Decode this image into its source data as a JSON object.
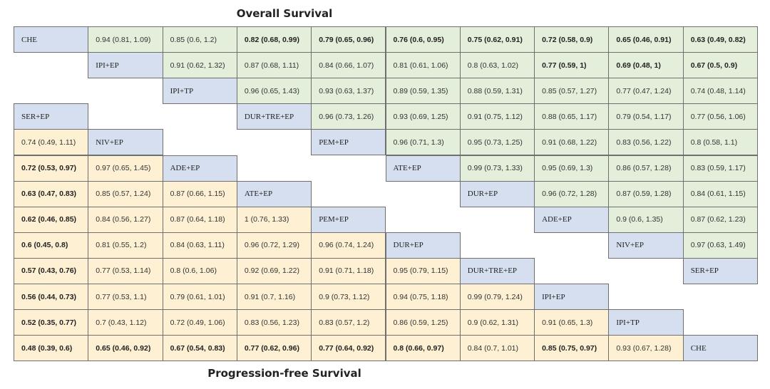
{
  "titles": {
    "top": "Overall Survival",
    "bottom": "Progression-free Survival"
  },
  "colors": {
    "os_cell": "#e3eedb",
    "pfs_cell": "#fdf0d3",
    "diag_cell": "#d6dff0",
    "border": "#6f6f6f"
  },
  "chart_data": {
    "type": "table",
    "title": "",
    "top_label": "Overall Survival",
    "bottom_label": "Progression-free Survival",
    "os_diagonal": [
      "CHE",
      "IPI+EP",
      "IPI+TP",
      "DUR+TRE+EP",
      "PEM+EP",
      "ATE+EP",
      "DUR+EP",
      "ADE+EP",
      "NIV+EP",
      "SER+EP"
    ],
    "pfs_diagonal": [
      "SER+EP",
      "NIV+EP",
      "ADE+EP",
      "ATE+EP",
      "PEM+EP",
      "DUR+EP",
      "DUR+TRE+EP",
      "IPI+EP",
      "IPI+TP",
      "CHE"
    ],
    "os_rows": [
      [
        {
          "v": "0.94 (0.81, 1.09)",
          "b": false
        },
        {
          "v": "0.85 (0.6, 1.2)",
          "b": false
        },
        {
          "v": "0.82 (0.68, 0.99)",
          "b": true
        },
        {
          "v": "0.79 (0.65, 0.96)",
          "b": true
        },
        {
          "v": "0.76 (0.6, 0.95)",
          "b": true
        },
        {
          "v": "0.75 (0.62, 0.91)",
          "b": true
        },
        {
          "v": "0.72 (0.58, 0.9)",
          "b": true
        },
        {
          "v": "0.65 (0.46, 0.91)",
          "b": true
        },
        {
          "v": "0.63 (0.49, 0.82)",
          "b": true
        }
      ],
      [
        {
          "v": "0.91 (0.62, 1.32)",
          "b": false
        },
        {
          "v": "0.87 (0.68, 1.11)",
          "b": false
        },
        {
          "v": "0.84 (0.66, 1.07)",
          "b": false
        },
        {
          "v": "0.81 (0.61, 1.06)",
          "b": false
        },
        {
          "v": "0.8 (0.63, 1.02)",
          "b": false
        },
        {
          "v": "0.77 (0.59, 1)",
          "b": true
        },
        {
          "v": "0.69 (0.48, 1)",
          "b": true
        },
        {
          "v": "0.67 (0.5, 0.9)",
          "b": true
        }
      ],
      [
        {
          "v": "0.96 (0.65, 1.43)",
          "b": false
        },
        {
          "v": "0.93 (0.63, 1.37)",
          "b": false
        },
        {
          "v": "0.89 (0.59, 1.35)",
          "b": false
        },
        {
          "v": "0.88 (0.59, 1.31)",
          "b": false
        },
        {
          "v": "0.85 (0.57, 1.27)",
          "b": false
        },
        {
          "v": "0.77 (0.47, 1.24)",
          "b": false
        },
        {
          "v": "0.74 (0.48, 1.14)",
          "b": false
        }
      ],
      [
        {
          "v": "0.96 (0.73, 1.26)",
          "b": false
        },
        {
          "v": "0.93 (0.69, 1.25)",
          "b": false
        },
        {
          "v": "0.91 (0.75, 1.12)",
          "b": false
        },
        {
          "v": "0.88 (0.65, 1.17)",
          "b": false
        },
        {
          "v": "0.79 (0.54, 1.17)",
          "b": false
        },
        {
          "v": "0.77 (0.56, 1.06)",
          "b": false
        }
      ],
      [
        {
          "v": "0.96 (0.71, 1.3)",
          "b": false
        },
        {
          "v": "0.95 (0.73, 1.25)",
          "b": false
        },
        {
          "v": "0.91 (0.68, 1.22)",
          "b": false
        },
        {
          "v": "0.83 (0.56, 1.22)",
          "b": false
        },
        {
          "v": "0.8 (0.58, 1.1)",
          "b": false
        }
      ],
      [
        {
          "v": "0.99 (0.73, 1.33)",
          "b": false
        },
        {
          "v": "0.95 (0.69, 1.3)",
          "b": false
        },
        {
          "v": "0.86 (0.57, 1.28)",
          "b": false
        },
        {
          "v": "0.83 (0.59, 1.17)",
          "b": false
        }
      ],
      [
        {
          "v": "0.96 (0.72, 1.28)",
          "b": false
        },
        {
          "v": "0.87 (0.59, 1.28)",
          "b": false
        },
        {
          "v": "0.84 (0.61, 1.15)",
          "b": false
        }
      ],
      [
        {
          "v": "0.9 (0.6, 1.35)",
          "b": false
        },
        {
          "v": "0.87 (0.62, 1.23)",
          "b": false
        }
      ],
      [
        {
          "v": "0.97 (0.63, 1.49)",
          "b": false
        }
      ],
      []
    ],
    "pfs_rows": [
      [],
      [
        {
          "v": "0.74 (0.49, 1.11)",
          "b": false
        }
      ],
      [
        {
          "v": "0.72 (0.53, 0.97)",
          "b": true
        },
        {
          "v": "0.97 (0.65, 1.45)",
          "b": false
        }
      ],
      [
        {
          "v": "0.63 (0.47, 0.83)",
          "b": true
        },
        {
          "v": "0.85 (0.57, 1.24)",
          "b": false
        },
        {
          "v": "0.87 (0.66, 1.15)",
          "b": false
        }
      ],
      [
        {
          "v": "0.62 (0.46, 0.85)",
          "b": true
        },
        {
          "v": "0.84 (0.56, 1.27)",
          "b": false
        },
        {
          "v": "0.87 (0.64, 1.18)",
          "b": false
        },
        {
          "v": "1 (0.76, 1.33)",
          "b": false
        }
      ],
      [
        {
          "v": "0.6 (0.45, 0.8)",
          "b": true
        },
        {
          "v": "0.81 (0.55, 1.2)",
          "b": false
        },
        {
          "v": "0.84 (0.63, 1.11)",
          "b": false
        },
        {
          "v": "0.96 (0.72, 1.29)",
          "b": false
        },
        {
          "v": "0.96 (0.74, 1.24)",
          "b": false
        }
      ],
      [
        {
          "v": "0.57 (0.43, 0.76)",
          "b": true
        },
        {
          "v": "0.77 (0.53, 1.14)",
          "b": false
        },
        {
          "v": "0.8 (0.6, 1.06)",
          "b": false
        },
        {
          "v": "0.92 (0.69, 1.22)",
          "b": false
        },
        {
          "v": "0.91 (0.71, 1.18)",
          "b": false
        },
        {
          "v": "0.95 (0.79, 1.15)",
          "b": false
        }
      ],
      [
        {
          "v": "0.56 (0.44, 0.73)",
          "b": true
        },
        {
          "v": "0.77 (0.53, 1.1)",
          "b": false
        },
        {
          "v": "0.79 (0.61, 1.01)",
          "b": false
        },
        {
          "v": "0.91 (0.7, 1.16)",
          "b": false
        },
        {
          "v": "0.9 (0.73, 1.12)",
          "b": false
        },
        {
          "v": "0.94 (0.75, 1.18)",
          "b": false
        },
        {
          "v": "0.99 (0.79, 1.24)",
          "b": false
        }
      ],
      [
        {
          "v": "0.52 (0.35, 0.77)",
          "b": true
        },
        {
          "v": "0.7 (0.43, 1.12)",
          "b": false
        },
        {
          "v": "0.72 (0.49, 1.06)",
          "b": false
        },
        {
          "v": "0.83 (0.56, 1.23)",
          "b": false
        },
        {
          "v": "0.83 (0.57, 1.2)",
          "b": false
        },
        {
          "v": "0.86 (0.59, 1.25)",
          "b": false
        },
        {
          "v": "0.9 (0.62, 1.31)",
          "b": false
        },
        {
          "v": "0.91 (0.65, 1.3)",
          "b": false
        }
      ],
      [
        {
          "v": "0.48 (0.39, 0.6)",
          "b": true
        },
        {
          "v": "0.65 (0.46, 0.92)",
          "b": true
        },
        {
          "v": "0.67 (0.54, 0.83)",
          "b": true
        },
        {
          "v": "0.77 (0.62, 0.96)",
          "b": true
        },
        {
          "v": "0.77 (0.64, 0.92)",
          "b": true
        },
        {
          "v": "0.8 (0.66, 0.97)",
          "b": true
        },
        {
          "v": "0.84 (0.7, 1.01)",
          "b": false
        },
        {
          "v": "0.85 (0.75, 0.97)",
          "b": true
        },
        {
          "v": "0.93 (0.67, 1.28)",
          "b": false
        }
      ]
    ]
  }
}
